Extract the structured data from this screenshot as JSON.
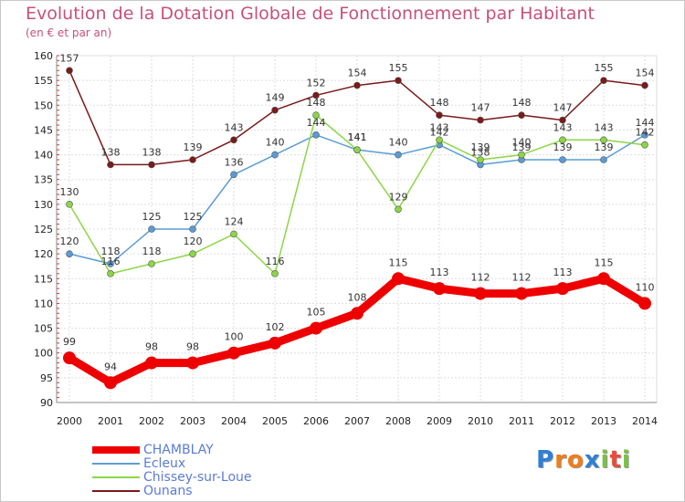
{
  "chart_data": {
    "type": "line",
    "title": "Evolution de la Dotation Globale de Fonctionnement par Habitant",
    "subtitle": "(en € et par an)",
    "xlabel": "",
    "ylabel": "",
    "ylim": [
      90,
      160
    ],
    "yticks": [
      "90",
      "95",
      "100",
      "105",
      "110",
      "115",
      "120",
      "125",
      "130",
      "135",
      "140",
      "145",
      "150",
      "155",
      "160"
    ],
    "categories": [
      "2000",
      "2001",
      "2002",
      "2003",
      "2004",
      "2005",
      "2006",
      "2007",
      "2008",
      "2009",
      "2010",
      "2011",
      "2012",
      "2013",
      "2014"
    ],
    "grid": true,
    "legend_position": "bottom-left",
    "series": [
      {
        "name": "Ounans",
        "color": "#7a1a1a",
        "values": [
          157,
          138,
          138,
          139,
          143,
          149,
          152,
          154,
          155,
          148,
          147,
          148,
          147,
          155,
          154
        ]
      },
      {
        "name": "Ecleux",
        "color": "#5b9bd5",
        "values": [
          120,
          118,
          125,
          125,
          136,
          140,
          144,
          141,
          140,
          142,
          138,
          139,
          139,
          139,
          144
        ]
      },
      {
        "name": "Chissey-sur-Loue",
        "color": "#8cd645",
        "values": [
          130,
          116,
          118,
          120,
          124,
          116,
          148,
          141,
          129,
          143,
          139,
          140,
          143,
          143,
          142
        ]
      },
      {
        "name": "CHAMBLAY",
        "color": "#ee0000",
        "values": [
          99,
          94,
          98,
          98,
          100,
          102,
          105,
          108,
          115,
          113,
          112,
          112,
          113,
          115,
          110
        ]
      }
    ]
  },
  "legend": [
    {
      "name": "CHAMBLAY",
      "color": "#ee0000"
    },
    {
      "name": "Ecleux",
      "color": "#5b9bd5"
    },
    {
      "name": "Chissey-sur-Loue",
      "color": "#8cd645"
    },
    {
      "name": "Ounans",
      "color": "#7a1a1a"
    }
  ],
  "logo": {
    "letters": [
      "P",
      "r",
      "o",
      "x",
      "i",
      "t",
      "i"
    ],
    "colors": [
      "#2f7fd6",
      "#ef7d1a",
      "#ef7d1a",
      "#2f7fd6",
      "#7bc143",
      "#e84c3d",
      "#7bc143"
    ]
  }
}
